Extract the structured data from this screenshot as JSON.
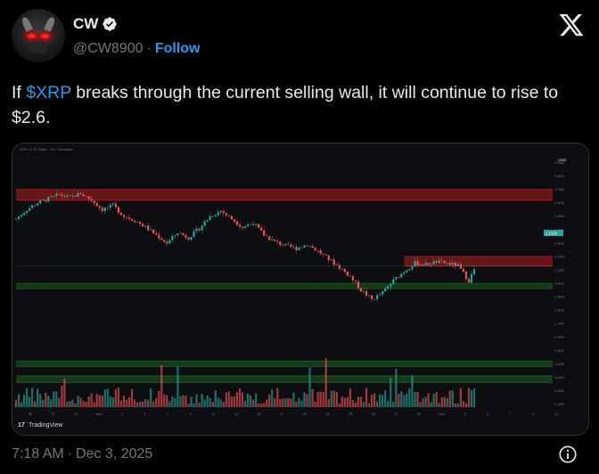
{
  "author": {
    "name": "CW",
    "handle": "@CW8900",
    "separator": "·",
    "follow_label": "Follow"
  },
  "icons": {
    "verified": "verified-badge-icon",
    "platform": "x-logo-icon",
    "info": "info-icon",
    "avatar": "bull-avatar"
  },
  "tweet": {
    "prefix": "If ",
    "cashtag": "$XRP",
    "rest": " breaks through the current selling wall, it will continue to rise to $2.6."
  },
  "chart": {
    "watermark": "TradingView",
    "header": "XRP / U.S. Dollar · 4h · Coinbase",
    "currency": "USD",
    "price_tag": "2.1318",
    "colors": {
      "up": "#26a69a",
      "down": "#ef5350",
      "resistance": "#b71c1c",
      "support": "#1b5e20",
      "accent": "#1d9bf0"
    },
    "x_ticks": [
      "25",
      "27",
      "29",
      "Nov",
      "3",
      "5",
      "7",
      "9",
      "11",
      "13",
      "15",
      "17",
      "19",
      "21",
      "23",
      "25",
      "27",
      "29",
      "Dec",
      "3",
      "5",
      "7",
      "9",
      "11"
    ],
    "y_ticks": [
      "2.9000",
      "2.8000",
      "2.7000",
      "2.6000",
      "2.5000",
      "2.4000",
      "2.3000",
      "2.2000",
      "2.1000",
      "2.0000",
      "1.9000",
      "1.8000",
      "1.7000",
      "1.6000",
      "1.5000",
      "1.4000",
      "1.3000",
      "1.2000",
      "1.1000"
    ]
  },
  "chart_data": {
    "type": "candlestick",
    "ylim": [
      1.05,
      2.95
    ],
    "x_range": [
      0,
      128
    ],
    "ohlc_close_path": [
      [
        0,
        2.48
      ],
      [
        3,
        2.55
      ],
      [
        6,
        2.6
      ],
      [
        9,
        2.63
      ],
      [
        12,
        2.66
      ],
      [
        15,
        2.64
      ],
      [
        18,
        2.67
      ],
      [
        21,
        2.62
      ],
      [
        24,
        2.55
      ],
      [
        27,
        2.58
      ],
      [
        30,
        2.5
      ],
      [
        33,
        2.47
      ],
      [
        36,
        2.42
      ],
      [
        39,
        2.36
      ],
      [
        42,
        2.3
      ],
      [
        45,
        2.38
      ],
      [
        48,
        2.34
      ],
      [
        51,
        2.41
      ],
      [
        54,
        2.5
      ],
      [
        57,
        2.54
      ],
      [
        60,
        2.48
      ],
      [
        63,
        2.42
      ],
      [
        66,
        2.45
      ],
      [
        69,
        2.36
      ],
      [
        72,
        2.31
      ],
      [
        75,
        2.28
      ],
      [
        78,
        2.26
      ],
      [
        81,
        2.29
      ],
      [
        84,
        2.24
      ],
      [
        87,
        2.18
      ],
      [
        90,
        2.12
      ],
      [
        93,
        2.05
      ],
      [
        96,
        1.95
      ],
      [
        99,
        1.88
      ],
      [
        102,
        1.93
      ],
      [
        105,
        2.02
      ],
      [
        108,
        2.09
      ],
      [
        111,
        2.15
      ],
      [
        114,
        2.14
      ],
      [
        117,
        2.16
      ],
      [
        120,
        2.15
      ],
      [
        123,
        2.13
      ],
      [
        126,
        2.02
      ],
      [
        128,
        2.13
      ]
    ],
    "zones": [
      {
        "kind": "resistance",
        "from": 2.62,
        "to": 2.7
      },
      {
        "kind": "resistance",
        "from": 2.13,
        "to": 2.2
      },
      {
        "kind": "support",
        "from": 1.96,
        "to": 2.0
      },
      {
        "kind": "support",
        "from": 1.38,
        "to": 1.42
      },
      {
        "kind": "support",
        "from": 1.26,
        "to": 1.31
      }
    ]
  },
  "footer": {
    "time": "7:18 AM",
    "separator": "·",
    "date": "Dec 3, 2025"
  }
}
